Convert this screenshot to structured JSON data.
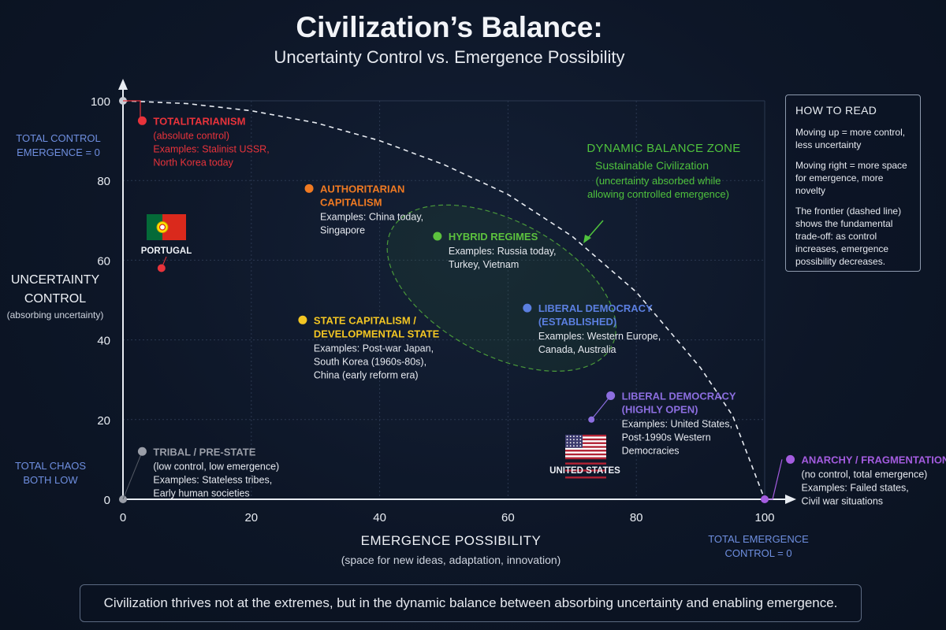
{
  "title": "Civilization’s Balance:",
  "subtitle": "Uncertainty Control vs. Emergence Possibility",
  "legend": {
    "title": "HOW TO READ",
    "lines": [
      "Moving up = more control, less uncertainty",
      "Moving right = more space for emergence, more novelty",
      "The frontier (dashed line) shows the fundamental trade-off: as control increases, emergence possibility decreases."
    ]
  },
  "bottom_text": "Civilization thrives not at the extremes, but in the dynamic balance between absorbing uncertainty and enabling emergence.",
  "chart_data": {
    "type": "scatter",
    "xlabel": "EMERGENCE POSSIBILITY",
    "xlabel_sub": "(space for new ideas, adaptation, innovation)",
    "ylabel": [
      "UNCERTAINTY",
      "CONTROL"
    ],
    "ylabel_sub": "(absorbing uncertainty)",
    "xlim": [
      0,
      100
    ],
    "ylim": [
      0,
      100
    ],
    "xticks": [
      0,
      20,
      40,
      60,
      80,
      100
    ],
    "yticks": [
      0,
      20,
      40,
      60,
      80,
      100
    ],
    "grid": true,
    "frontier": {
      "style": "dashed",
      "points": [
        [
          0,
          100
        ],
        [
          10,
          99.3
        ],
        [
          20,
          97.5
        ],
        [
          30,
          94.5
        ],
        [
          40,
          90
        ],
        [
          50,
          84
        ],
        [
          60,
          76.5
        ],
        [
          70,
          66
        ],
        [
          80,
          52
        ],
        [
          90,
          33
        ],
        [
          95,
          21
        ],
        [
          100,
          0
        ]
      ]
    },
    "corner_labels": {
      "top_left": [
        "TOTAL CONTROL",
        "EMERGENCE = 0"
      ],
      "bottom_left": [
        "TOTAL CHAOS",
        "BOTH LOW"
      ],
      "bottom_right": [
        "TOTAL EMERGENCE",
        "CONTROL = 0"
      ]
    },
    "zone": {
      "title": "DYNAMIC BALANCE ZONE",
      "subtitle": "Sustainable Civilization",
      "note": [
        "(uncertainty absorbed while",
        "allowing controlled emergence)"
      ],
      "color": "#4fc23d"
    },
    "points": [
      {
        "x": 3,
        "y": 95,
        "color": "#e8333b",
        "title": [
          "TOTALITARIANISM"
        ],
        "detail": [
          "(absolute control)",
          "Examples: Stalinist USSR,",
          "North Korea today"
        ],
        "detail_color": "#e8333b"
      },
      {
        "x": 29,
        "y": 78,
        "color": "#f07a22",
        "title": [
          "AUTHORITARIAN",
          "CAPITALISM"
        ],
        "detail": [
          "Examples: China today,",
          "Singapore"
        ]
      },
      {
        "x": 49,
        "y": 66,
        "color": "#5cc23e",
        "title": [
          "HYBRID REGIMES"
        ],
        "detail": [
          "Examples: Russia today,",
          "Turkey, Vietnam"
        ]
      },
      {
        "x": 28,
        "y": 45,
        "color": "#f3c623",
        "title": [
          "STATE CAPITALISM /",
          "DEVELOPMENTAL STATE"
        ],
        "detail": [
          "Examples: Post-war Japan,",
          "South Korea (1960s-80s),",
          "China (early reform era)"
        ]
      },
      {
        "x": 63,
        "y": 48,
        "color": "#5b7fe0",
        "title": [
          "LIBERAL DEMOCRACY",
          "(ESTABLISHED)"
        ],
        "detail": [
          "Examples: Western Europe,",
          "Canada, Australia"
        ]
      },
      {
        "x": 76,
        "y": 26,
        "color": "#8c6ee0",
        "title": [
          "LIBERAL DEMOCRACY",
          "(HIGHLY OPEN)"
        ],
        "detail": [
          "Examples: United States,",
          "Post-1990s Western",
          "Democracies"
        ]
      },
      {
        "x": 3,
        "y": 12,
        "color": "#9a9ea8",
        "title": [
          "TRIBAL / PRE-STATE"
        ],
        "detail": [
          "(low control, low emergence)",
          "Examples: Stateless tribes,",
          "Early human societies"
        ]
      },
      {
        "x": 104,
        "y": 10,
        "color": "#a45ce0",
        "title": [
          "ANARCHY / FRAGMENTATION"
        ],
        "detail": [
          "(no control, total emergence)",
          "Examples: Failed states,",
          "Civil war situations"
        ]
      }
    ],
    "country_markers": [
      {
        "label": "PORTUGAL",
        "x": 6,
        "y": 58,
        "color": "#e8333b"
      },
      {
        "label": "UNITED STATES",
        "x": 75,
        "y": 18,
        "color": "#5b7fe0"
      }
    ]
  }
}
